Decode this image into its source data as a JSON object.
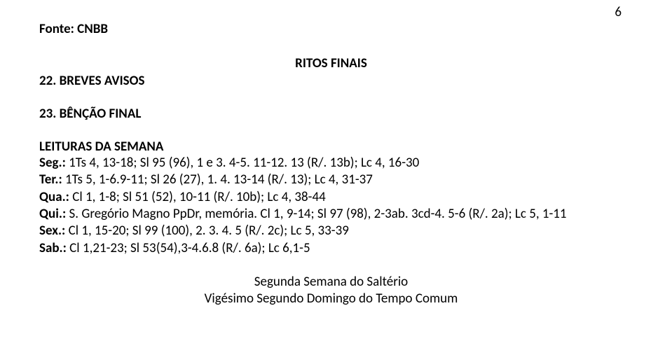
{
  "page_number": "6",
  "source_line": "Fonte: CNBB",
  "ritos_heading": "RITOS FINAIS",
  "breves_avisos": "22. BREVES AVISOS",
  "bencao_final": "23. BÊNÇÃO FINAL",
  "leituras_label": "LEITURAS DA SEMANA",
  "readings": [
    {
      "prefix": "Seg.:",
      "text": " 1Ts 4, 13-18; Sl 95 (96), 1 e 3. 4-5. 11-12. 13 (R/. 13b); Lc 4, 16-30"
    },
    {
      "prefix": "Ter.:",
      "text": " 1Ts 5, 1-6.9-11; Sl 26 (27), 1. 4. 13-14 (R/. 13); Lc 4, 31-37"
    },
    {
      "prefix": "Qua.:",
      "text": " Cl 1, 1-8; Sl 51 (52), 10-11 (R/. 10b); Lc 4, 38-44"
    },
    {
      "prefix": "Qui.:",
      "text": " S. Gregório Magno PpDr, memória. Cl 1, 9-14; Sl 97 (98), 2-3ab. 3cd-4. 5-6 (R/. 2a); Lc 5, 1-11"
    },
    {
      "prefix": "Sex.:",
      "text": " Cl 1, 15-20; Sl 99 (100), 2. 3. 4. 5 (R/. 2c); Lc 5, 33-39"
    },
    {
      "prefix": "Sab.:",
      "text": " Cl 1,21-23; Sl 53(54),3-4.6.8 (R/. 6a); Lc 6,1-5"
    }
  ],
  "footer_line1": "Segunda Semana do Saltério",
  "footer_line2": "Vigésimo Segundo Domingo do Tempo Comum"
}
